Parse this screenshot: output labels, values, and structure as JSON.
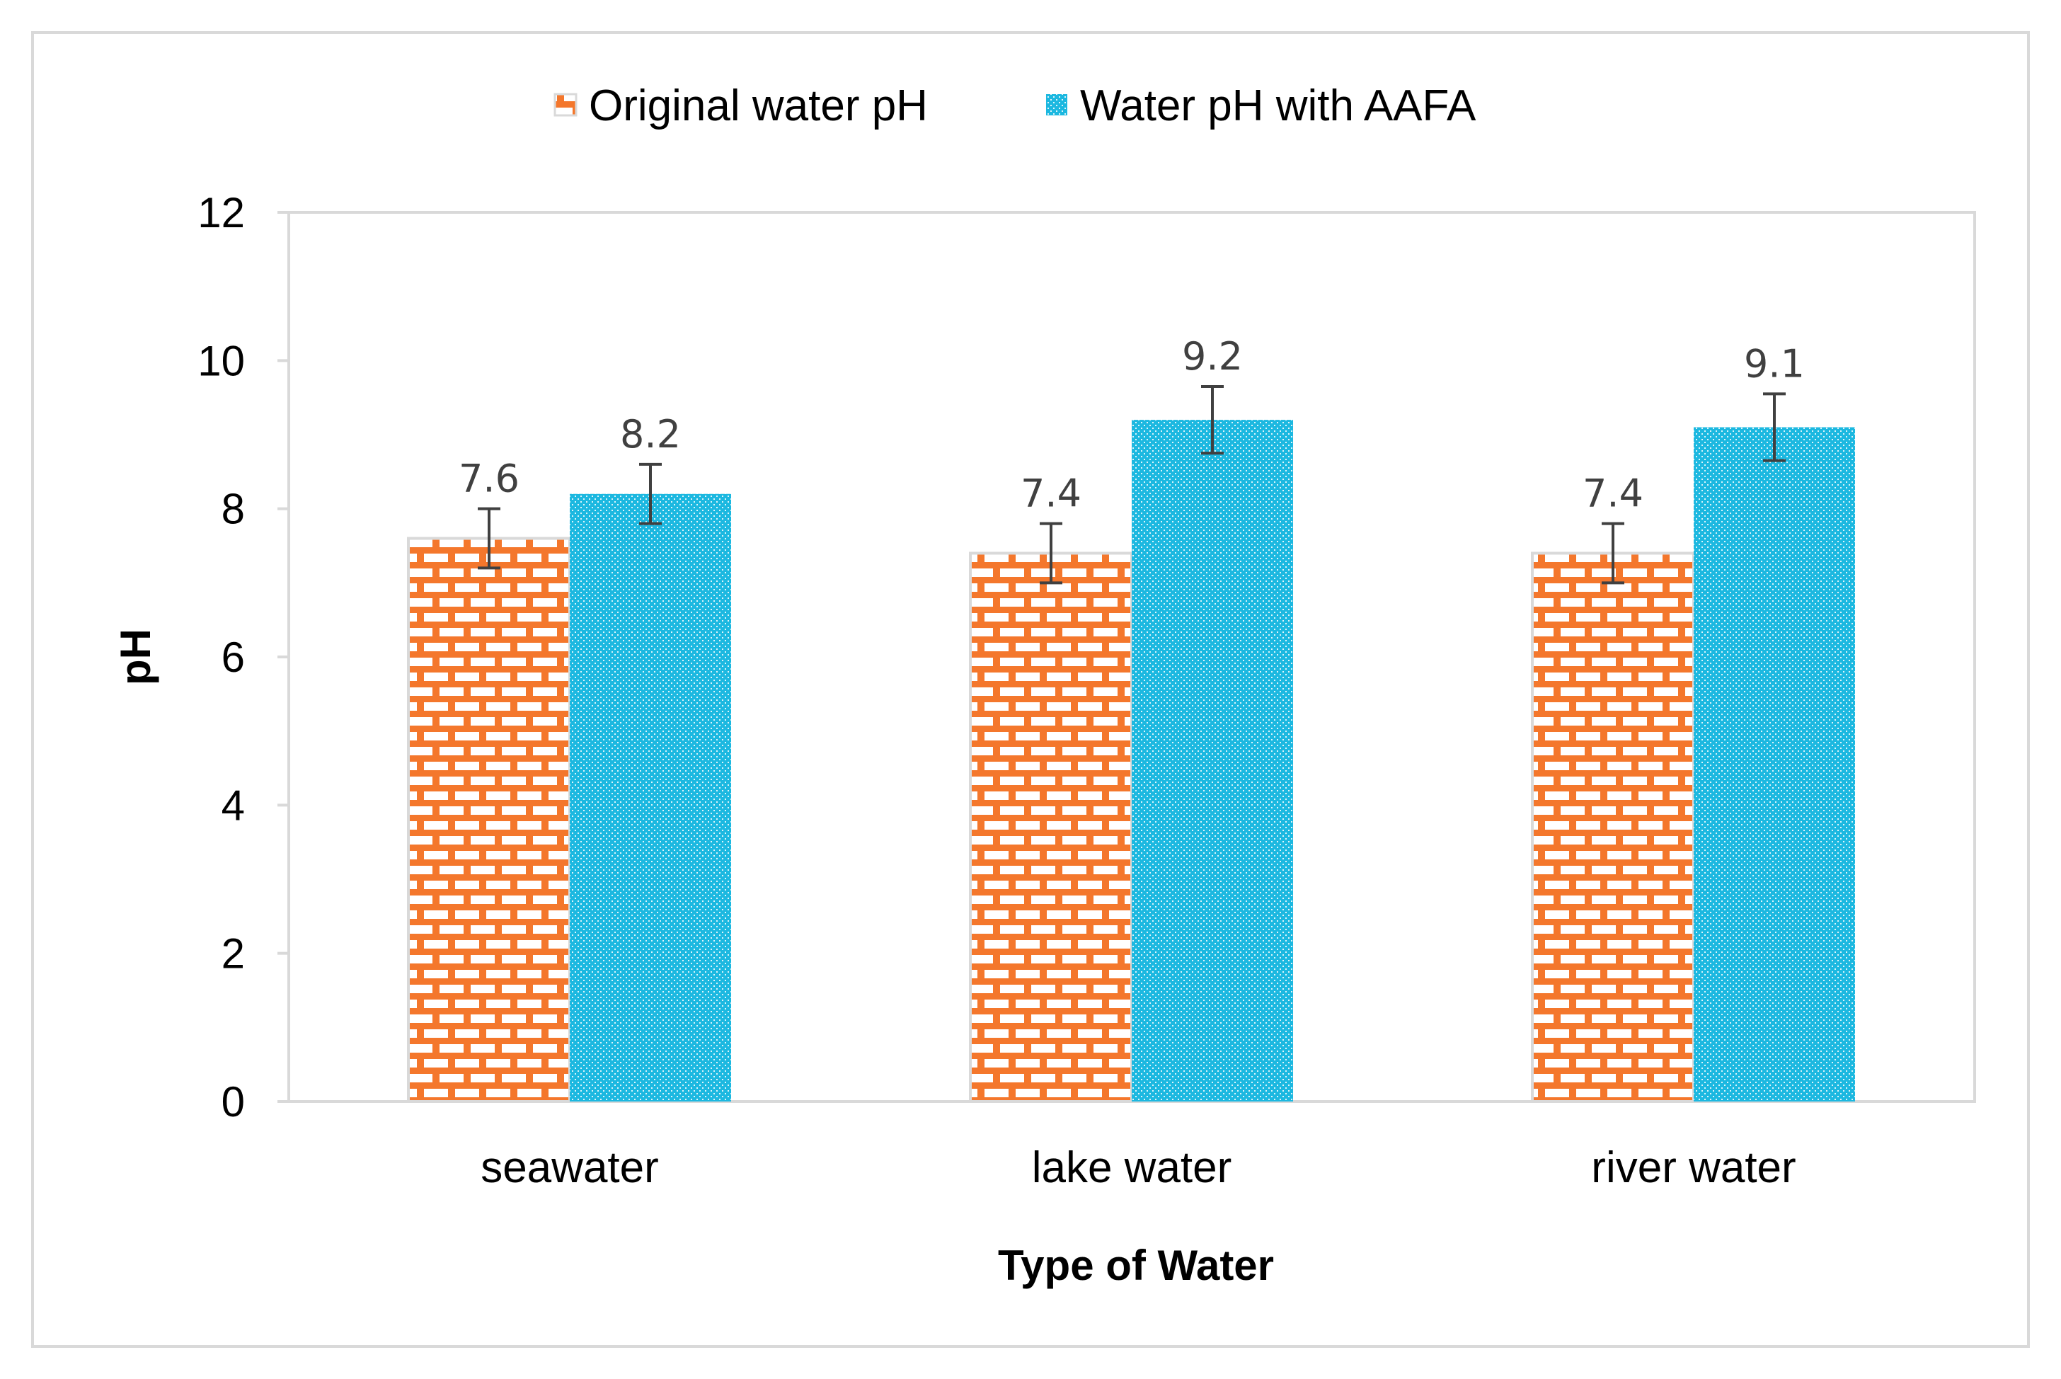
{
  "chart_data": {
    "type": "bar",
    "title": "",
    "xlabel": "Type of Water",
    "ylabel": "pH",
    "ylim": [
      0,
      12
    ],
    "yticks": [
      0,
      2,
      4,
      6,
      8,
      10,
      12
    ],
    "categories": [
      "seawater",
      "lake water",
      "river water"
    ],
    "series": [
      {
        "name": "Original water pH",
        "values": [
          7.6,
          7.4,
          7.4
        ],
        "labels": [
          "7.6",
          "7.4",
          "7.4"
        ],
        "error": [
          0.4,
          0.4,
          0.4
        ],
        "color": "#F4772C",
        "pattern": "brick"
      },
      {
        "name": "Water pH with AAFA",
        "values": [
          8.2,
          9.2,
          9.1
        ],
        "labels": [
          "8.2",
          "9.2",
          "9.1"
        ],
        "error": [
          0.4,
          0.45,
          0.45
        ],
        "color": "#1CB8E0",
        "pattern": "dots"
      }
    ],
    "legend_position": "top-center",
    "grid": false
  }
}
